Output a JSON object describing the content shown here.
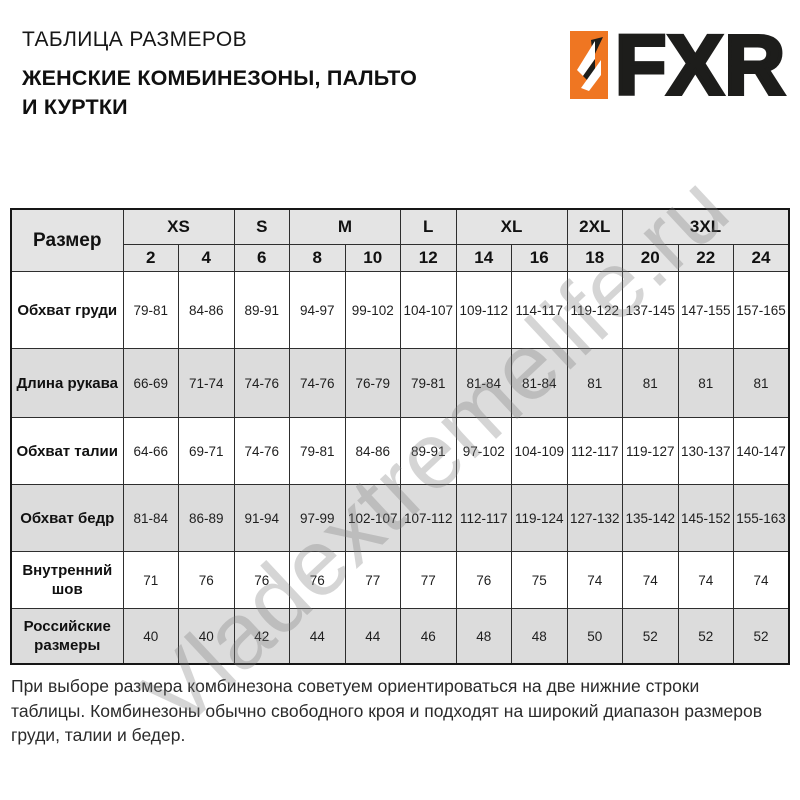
{
  "header": {
    "title": "ТАБЛИЦА РАЗМЕРОВ",
    "subtitle_line1": "ЖЕНСКИЕ КОМБИНЕЗОНЫ, ПАЛЬТО",
    "subtitle_line2": "И КУРТКИ",
    "logo_text": "FXR"
  },
  "watermark": "Vladextremelife.ru",
  "table": {
    "corner_label": "Размер",
    "size_groups": [
      {
        "label": "XS",
        "span": 2
      },
      {
        "label": "S",
        "span": 1
      },
      {
        "label": "M",
        "span": 2
      },
      {
        "label": "L",
        "span": 1
      },
      {
        "label": "XL",
        "span": 2
      },
      {
        "label": "2XL",
        "span": 1
      },
      {
        "label": "3XL",
        "span": 3
      }
    ],
    "size_numbers": [
      "2",
      "4",
      "6",
      "8",
      "10",
      "12",
      "14",
      "16",
      "18",
      "20",
      "22",
      "24"
    ],
    "rows": [
      {
        "label": "Обхват груди",
        "values": [
          "79-81",
          "84-86",
          "89-91",
          "94-97",
          "99-102",
          "104-107",
          "109-112",
          "114-117",
          "119-122",
          "137-145",
          "147-155",
          "157-165"
        ]
      },
      {
        "label": "Длина рукава",
        "values": [
          "66-69",
          "71-74",
          "74-76",
          "74-76",
          "76-79",
          "79-81",
          "81-84",
          "81-84",
          "81",
          "81",
          "81",
          "81"
        ]
      },
      {
        "label": "Обхват талии",
        "values": [
          "64-66",
          "69-71",
          "74-76",
          "79-81",
          "84-86",
          "89-91",
          "97-102",
          "104-109",
          "112-117",
          "119-127",
          "130-137",
          "140-147"
        ]
      },
      {
        "label": "Обхват бедр",
        "values": [
          "81-84",
          "86-89",
          "91-94",
          "97-99",
          "102-107",
          "107-112",
          "112-117",
          "119-124",
          "127-132",
          "135-142",
          "145-152",
          "155-163"
        ]
      },
      {
        "label": "Внутренний шов",
        "values": [
          "71",
          "76",
          "76",
          "76",
          "77",
          "77",
          "76",
          "75",
          "74",
          "74",
          "74",
          "74"
        ]
      },
      {
        "label": "Российские размеры",
        "values": [
          "40",
          "40",
          "42",
          "44",
          "44",
          "46",
          "48",
          "48",
          "50",
          "52",
          "52",
          "52"
        ]
      }
    ]
  },
  "footer": {
    "note": "При выборе размера комбинезона советуем ориентироваться на две нижние строки таблицы. Комбинезоны обычно свободного кроя и подходят на широкий диапазон размеров груди, талии и бедер."
  },
  "colors": {
    "accent_orange": "#ef7622",
    "logo_black": "#1d1d1b",
    "header_gray": "#e4e4e4",
    "stripe_gray": "#dcdcdc",
    "border_dark": "#161616"
  }
}
